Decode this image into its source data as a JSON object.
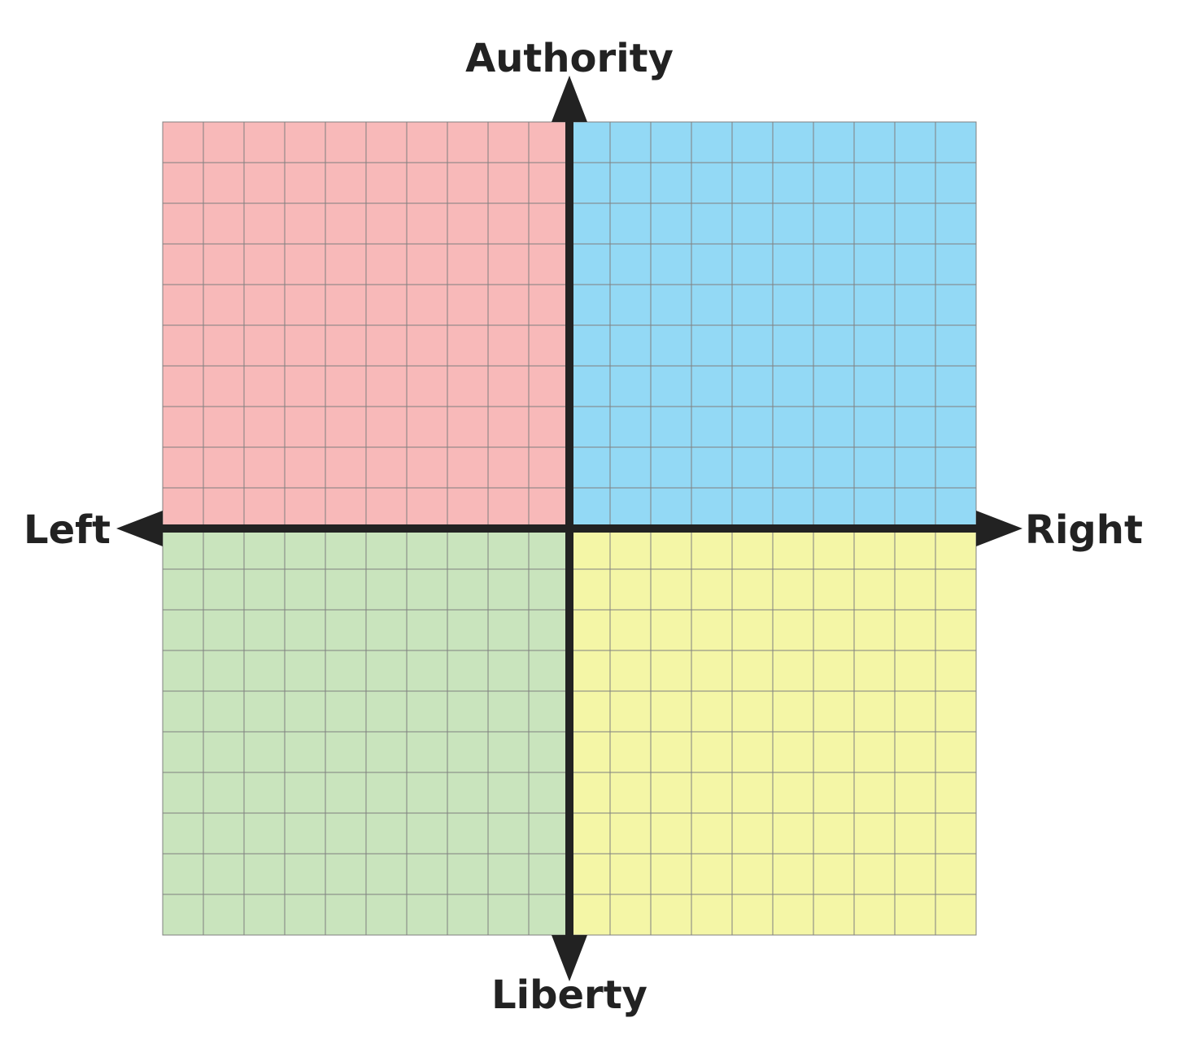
{
  "labels": {
    "top": "Authority",
    "bottom": "Liberty",
    "left": "Left",
    "right": "Right"
  },
  "quadrants": [
    {
      "id": "top-left",
      "color": "#f8b9b9"
    },
    {
      "id": "top-right",
      "color": "#93d9f5"
    },
    {
      "id": "bottom-left",
      "color": "#c9e4bd"
    },
    {
      "id": "bottom-right",
      "color": "#f4f6a6"
    }
  ],
  "colors": {
    "axis": "#222222",
    "grid": "#808080"
  },
  "grid_divisions": 20
}
